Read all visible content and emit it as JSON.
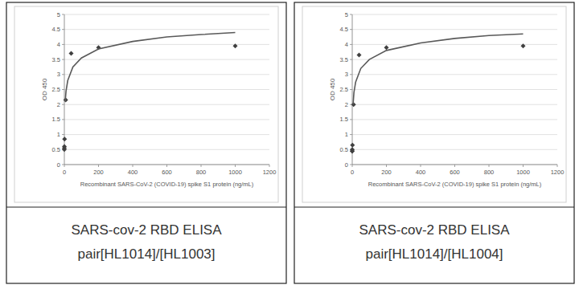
{
  "chart_data": [
    {
      "type": "scatter",
      "title": "SARS-cov-2 RBD ELISA",
      "subtitle": "pair[HL1014]/[HL1003]",
      "x_label": "Recombinant SARS-CoV-2 (COVID-19) spike S1 protein (ng/mL)",
      "y_label": "OD 450",
      "xlim": [
        0,
        1200
      ],
      "xticks": [
        0,
        200,
        400,
        600,
        800,
        1000,
        1200
      ],
      "ylim": [
        0,
        5
      ],
      "yticks": [
        0,
        0.5,
        1,
        1.5,
        2,
        2.5,
        3,
        3.5,
        4,
        4.5,
        5
      ],
      "grid": true,
      "series": [
        {
          "type": "scatter",
          "marker": "diamond",
          "color": "#404040",
          "x": [
            0,
            0.064,
            0.32,
            1.6,
            8,
            40,
            200,
            1000
          ],
          "values": [
            0.5,
            0.55,
            0.6,
            0.85,
            2.15,
            3.7,
            3.9,
            3.95
          ]
        },
        {
          "type": "line",
          "line_style": "solid",
          "color": "#595959",
          "x": [
            5,
            10,
            20,
            50,
            100,
            200,
            400,
            600,
            800,
            1000
          ],
          "values": [
            2.1,
            2.45,
            2.8,
            3.25,
            3.55,
            3.85,
            4.1,
            4.25,
            4.33,
            4.4
          ]
        }
      ]
    },
    {
      "type": "scatter",
      "title": "SARS-cov-2 RBD ELISA",
      "subtitle": "pair[HL1014]/[HL1004]",
      "x_label": "Recombinant SARS-CoV-2 (COVID-19) spike S1 protein (ng/mL)",
      "y_label": "OD 450",
      "xlim": [
        0,
        1200
      ],
      "xticks": [
        0,
        200,
        400,
        600,
        800,
        1000,
        1200
      ],
      "ylim": [
        0,
        5
      ],
      "yticks": [
        0,
        0.5,
        1,
        1.5,
        2,
        2.5,
        3,
        3.5,
        4,
        4.5,
        5
      ],
      "grid": true,
      "series": [
        {
          "type": "scatter",
          "marker": "diamond",
          "color": "#404040",
          "x": [
            0,
            0.064,
            0.32,
            1.6,
            8,
            40,
            200,
            1000
          ],
          "values": [
            0.45,
            0.45,
            0.5,
            0.65,
            2.0,
            3.65,
            3.9,
            3.95
          ]
        },
        {
          "type": "line",
          "line_style": "solid",
          "color": "#595959",
          "x": [
            5,
            10,
            20,
            50,
            100,
            200,
            400,
            600,
            800,
            1000
          ],
          "values": [
            2.0,
            2.4,
            2.75,
            3.2,
            3.5,
            3.8,
            4.05,
            4.2,
            4.3,
            4.35
          ]
        }
      ]
    }
  ]
}
